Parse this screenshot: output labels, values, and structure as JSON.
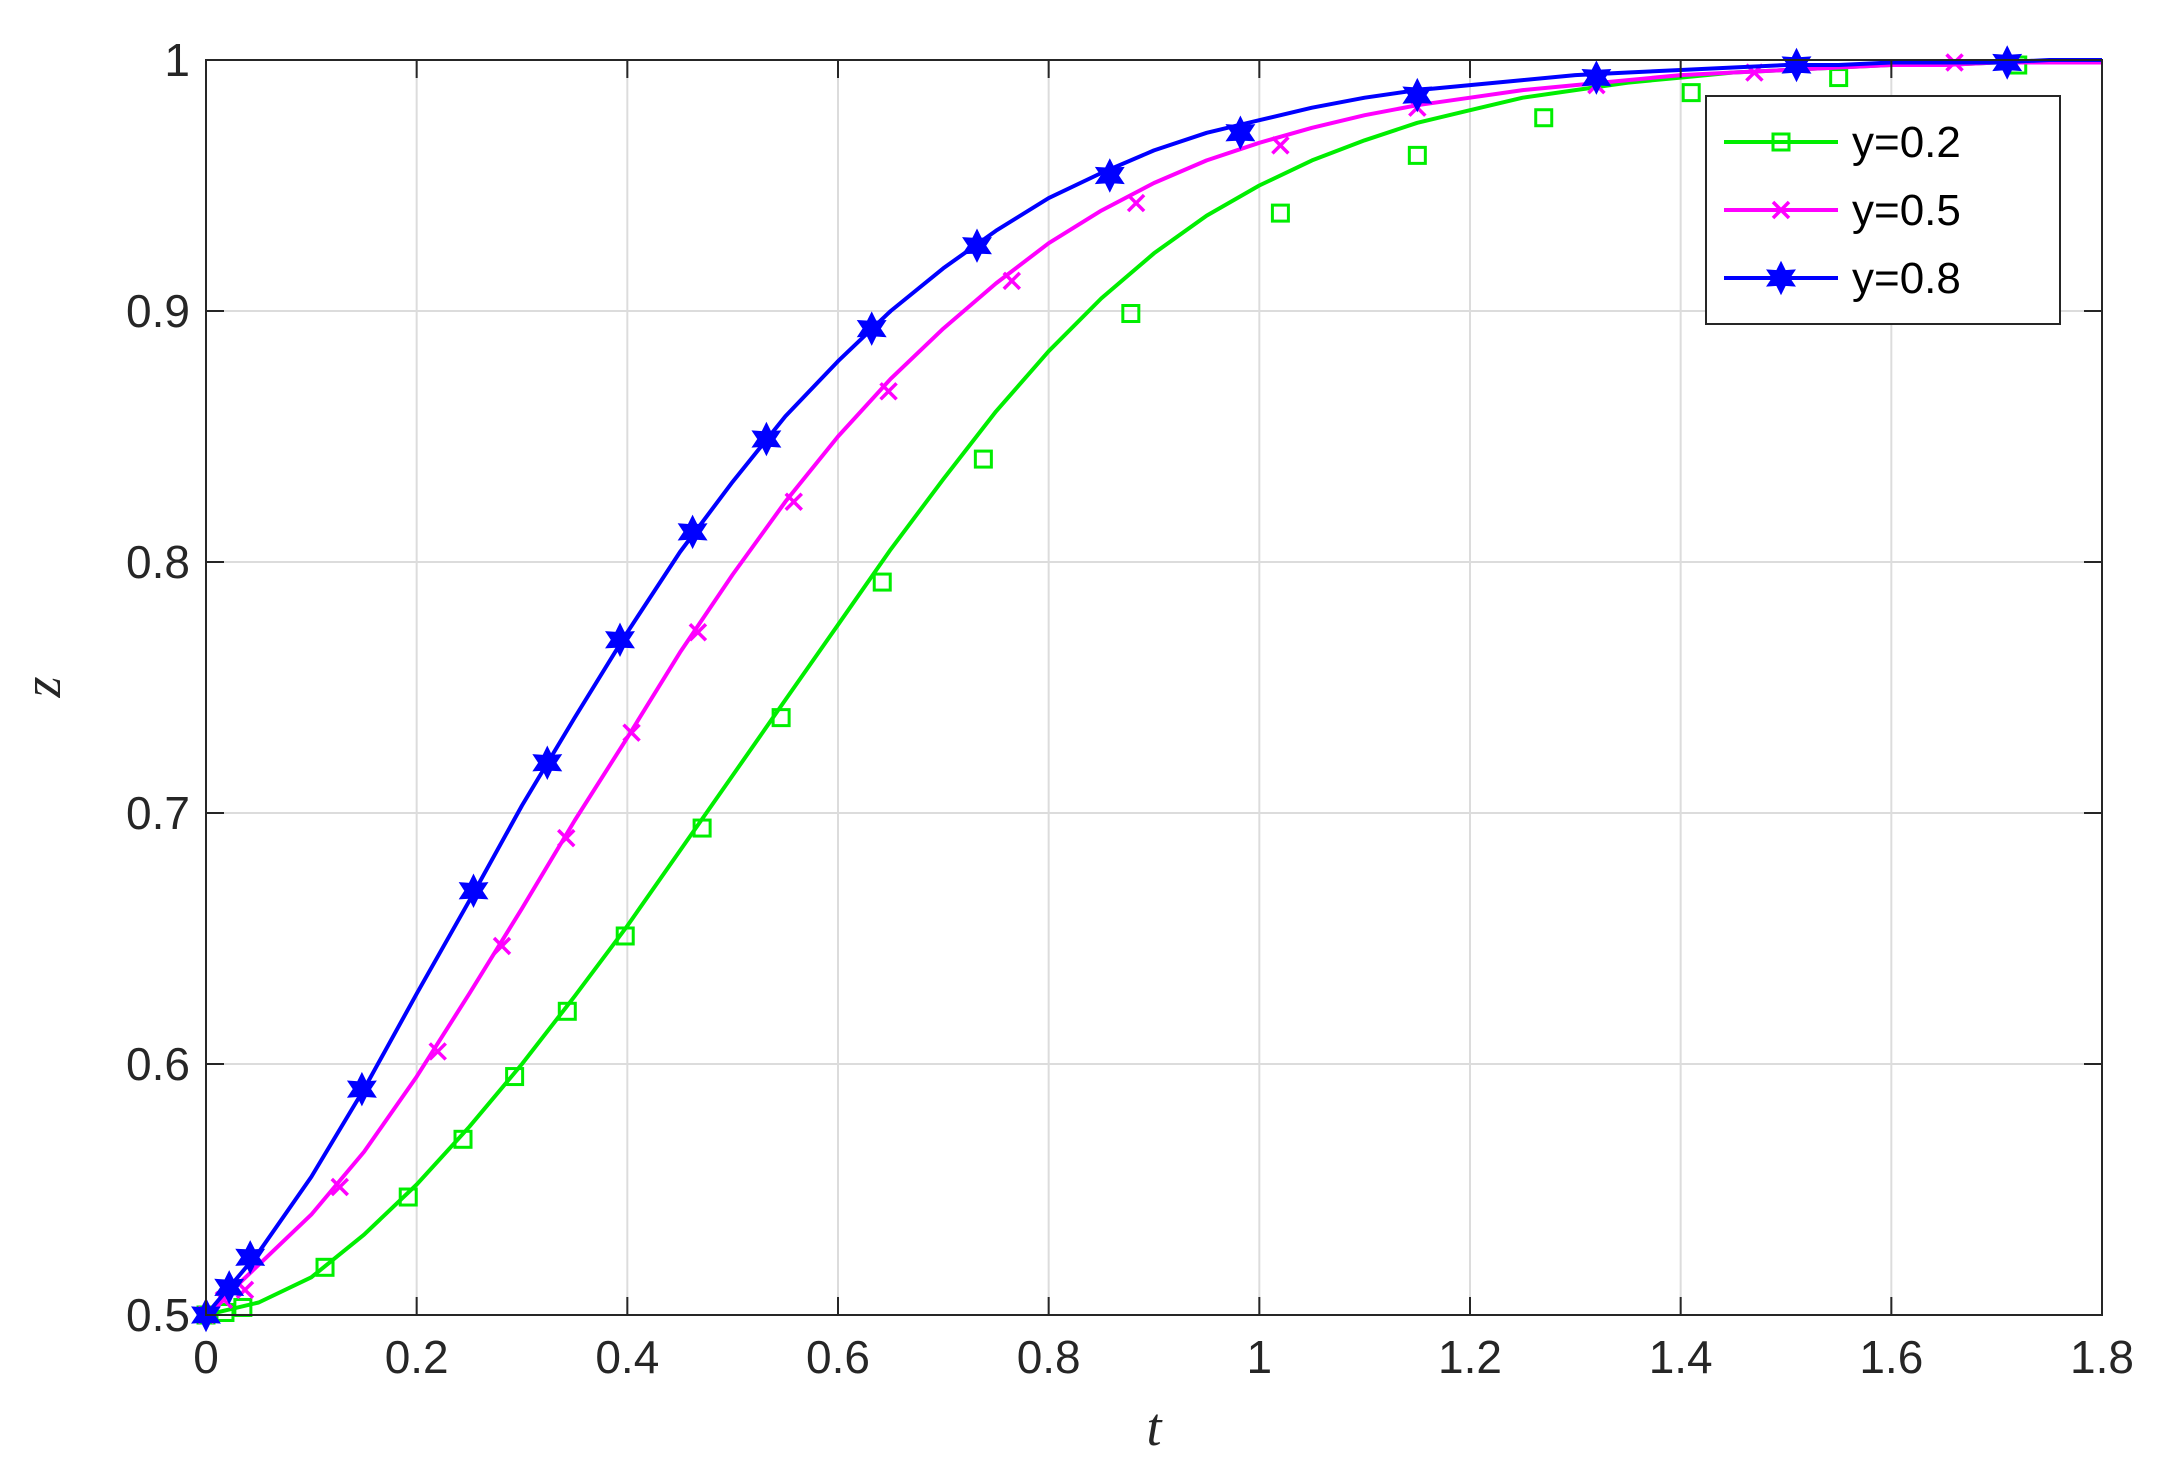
{
  "chart_data": {
    "type": "line",
    "xlabel": "t",
    "ylabel": "z",
    "xlim": [
      0,
      1.8
    ],
    "ylim": [
      0.5,
      1
    ],
    "xticks": [
      "0",
      "0.2",
      "0.4",
      "0.6",
      "0.8",
      "1",
      "1.2",
      "1.4",
      "1.6",
      "1.8"
    ],
    "yticks": [
      "0.5",
      "0.6",
      "0.7",
      "0.8",
      "0.9",
      "1"
    ],
    "grid": true,
    "legend_position": "top-right",
    "series": [
      {
        "name": "y=0.2",
        "color": "#00ee00",
        "marker": "square",
        "x": [
          0,
          0.05,
          0.1,
          0.15,
          0.2,
          0.25,
          0.3,
          0.35,
          0.4,
          0.45,
          0.5,
          0.55,
          0.6,
          0.65,
          0.7,
          0.75,
          0.8,
          0.85,
          0.9,
          0.95,
          1.0,
          1.05,
          1.1,
          1.15,
          1.2,
          1.25,
          1.3,
          1.35,
          1.4,
          1.45,
          1.5,
          1.55,
          1.6,
          1.65,
          1.7,
          1.75,
          1.8
        ],
        "values": [
          0.5,
          0.505,
          0.515,
          0.532,
          0.552,
          0.575,
          0.6,
          0.627,
          0.655,
          0.685,
          0.715,
          0.745,
          0.775,
          0.805,
          0.833,
          0.86,
          0.884,
          0.905,
          0.923,
          0.938,
          0.95,
          0.96,
          0.968,
          0.975,
          0.98,
          0.985,
          0.988,
          0.991,
          0.993,
          0.995,
          0.996,
          0.997,
          0.998,
          0.998,
          0.999,
          0.999,
          0.999
        ],
        "marker_x": [
          0,
          0.018,
          0.035,
          0.113,
          0.192,
          0.244,
          0.293,
          0.343,
          0.398,
          0.471,
          0.546,
          0.642,
          0.738,
          0.878,
          1.02,
          1.15,
          1.27,
          1.41,
          1.55,
          1.72
        ],
        "marker_y": [
          0.5,
          0.501,
          0.503,
          0.519,
          0.547,
          0.57,
          0.595,
          0.621,
          0.651,
          0.694,
          0.738,
          0.792,
          0.841,
          0.899,
          0.939,
          0.962,
          0.977,
          0.987,
          0.993,
          0.998
        ]
      },
      {
        "name": "y=0.5",
        "color": "#ff00ff",
        "marker": "x",
        "x": [
          0,
          0.05,
          0.1,
          0.15,
          0.2,
          0.25,
          0.3,
          0.35,
          0.4,
          0.45,
          0.5,
          0.55,
          0.6,
          0.65,
          0.7,
          0.75,
          0.8,
          0.85,
          0.9,
          0.95,
          1.0,
          1.05,
          1.1,
          1.15,
          1.2,
          1.25,
          1.3,
          1.35,
          1.4,
          1.45,
          1.5,
          1.55,
          1.6,
          1.65,
          1.7,
          1.75,
          1.8
        ],
        "values": [
          0.5,
          0.52,
          0.54,
          0.565,
          0.595,
          0.628,
          0.662,
          0.697,
          0.73,
          0.764,
          0.795,
          0.824,
          0.85,
          0.873,
          0.893,
          0.911,
          0.927,
          0.94,
          0.951,
          0.96,
          0.967,
          0.973,
          0.978,
          0.982,
          0.985,
          0.988,
          0.99,
          0.992,
          0.994,
          0.995,
          0.996,
          0.997,
          0.998,
          0.998,
          0.999,
          0.999,
          0.999
        ],
        "marker_x": [
          0,
          0.017,
          0.037,
          0.127,
          0.22,
          0.281,
          0.342,
          0.404,
          0.467,
          0.558,
          0.648,
          0.765,
          0.883,
          1.02,
          1.15,
          1.32,
          1.47,
          1.66
        ],
        "marker_y": [
          0.5,
          0.506,
          0.51,
          0.551,
          0.605,
          0.647,
          0.69,
          0.732,
          0.772,
          0.824,
          0.868,
          0.912,
          0.943,
          0.966,
          0.981,
          0.99,
          0.995,
          0.999
        ]
      },
      {
        "name": "y=0.8",
        "color": "#0000ff",
        "marker": "hexagram",
        "x": [
          0,
          0.05,
          0.1,
          0.15,
          0.2,
          0.25,
          0.3,
          0.35,
          0.4,
          0.45,
          0.5,
          0.55,
          0.6,
          0.65,
          0.7,
          0.75,
          0.8,
          0.85,
          0.9,
          0.95,
          1.0,
          1.05,
          1.1,
          1.15,
          1.2,
          1.25,
          1.3,
          1.35,
          1.4,
          1.45,
          1.5,
          1.55,
          1.6,
          1.65,
          1.7,
          1.75,
          1.8
        ],
        "values": [
          0.5,
          0.525,
          0.555,
          0.59,
          0.628,
          0.665,
          0.703,
          0.738,
          0.772,
          0.804,
          0.832,
          0.858,
          0.88,
          0.9,
          0.917,
          0.932,
          0.945,
          0.955,
          0.964,
          0.971,
          0.976,
          0.981,
          0.985,
          0.988,
          0.99,
          0.992,
          0.994,
          0.995,
          0.996,
          0.997,
          0.998,
          0.998,
          0.999,
          0.999,
          0.999,
          1.0,
          1.0
        ],
        "marker_x": [
          0,
          0.022,
          0.042,
          0.148,
          0.254,
          0.324,
          0.393,
          0.462,
          0.532,
          0.632,
          0.732,
          0.858,
          0.982,
          1.15,
          1.32,
          1.51,
          1.71
        ],
        "marker_y": [
          0.5,
          0.511,
          0.523,
          0.59,
          0.669,
          0.72,
          0.769,
          0.812,
          0.849,
          0.893,
          0.926,
          0.954,
          0.971,
          0.986,
          0.993,
          0.998,
          0.999
        ]
      }
    ]
  }
}
